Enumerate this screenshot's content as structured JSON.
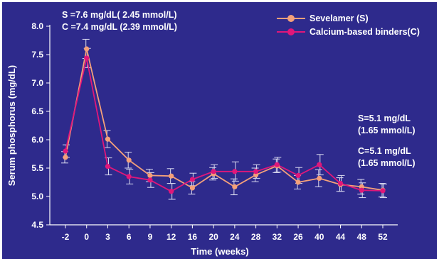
{
  "chart_data": {
    "type": "line",
    "xlabel": "Time (weeks)",
    "ylabel": "Serum phosphorus (mg/dL)",
    "categories": [
      "-2",
      "0",
      "3",
      "6",
      "9",
      "12",
      "16",
      "20",
      "24",
      "28",
      "32",
      "26",
      "40",
      "44",
      "48",
      "52"
    ],
    "ylim": [
      4.5,
      8.0
    ],
    "yticks": [
      "8.0",
      "7.5",
      "7.0",
      "6.5",
      "6.0",
      "5.5",
      "5.0",
      "4.5"
    ],
    "grid": false,
    "legend_position": "top-right",
    "series": [
      {
        "name": "Sevelamer (S)",
        "color": "#f4a07a",
        "values": [
          5.69,
          7.6,
          6.01,
          5.64,
          5.37,
          5.36,
          5.15,
          5.4,
          5.17,
          5.38,
          5.54,
          5.25,
          5.32,
          5.21,
          5.17,
          5.11
        ],
        "errors": [
          0.1,
          0.17,
          0.15,
          0.14,
          0.11,
          0.13,
          0.11,
          0.11,
          0.14,
          0.12,
          0.12,
          0.12,
          0.15,
          0.12,
          0.13,
          0.12
        ]
      },
      {
        "name": "Calcium-based binders(C)",
        "color": "#e0177a",
        "values": [
          5.8,
          7.44,
          5.53,
          5.35,
          5.29,
          5.09,
          5.3,
          5.44,
          5.44,
          5.44,
          5.56,
          5.37,
          5.56,
          5.23,
          5.11,
          5.1
        ],
        "errors": [
          0.11,
          0.17,
          0.15,
          0.13,
          0.13,
          0.14,
          0.11,
          0.12,
          0.17,
          0.12,
          0.13,
          0.14,
          0.18,
          0.14,
          0.13,
          0.12
        ]
      }
    ]
  },
  "annotations": {
    "start_s": "S =7.6 mg/dL( 2.45 mmol/L)",
    "start_c": "C =7.4 mg/dL (2.39 mmol/L)",
    "end_s_1": "S=5.1 mg/dL",
    "end_s_2": "(1.65 mmol/L)",
    "end_c_1": "C=5.1 mg/dL",
    "end_c_2": "(1.65 mmol/L)"
  },
  "colors": {
    "background": "#2e2a8c",
    "axis": "#ffffff",
    "text": "#ffffff"
  }
}
